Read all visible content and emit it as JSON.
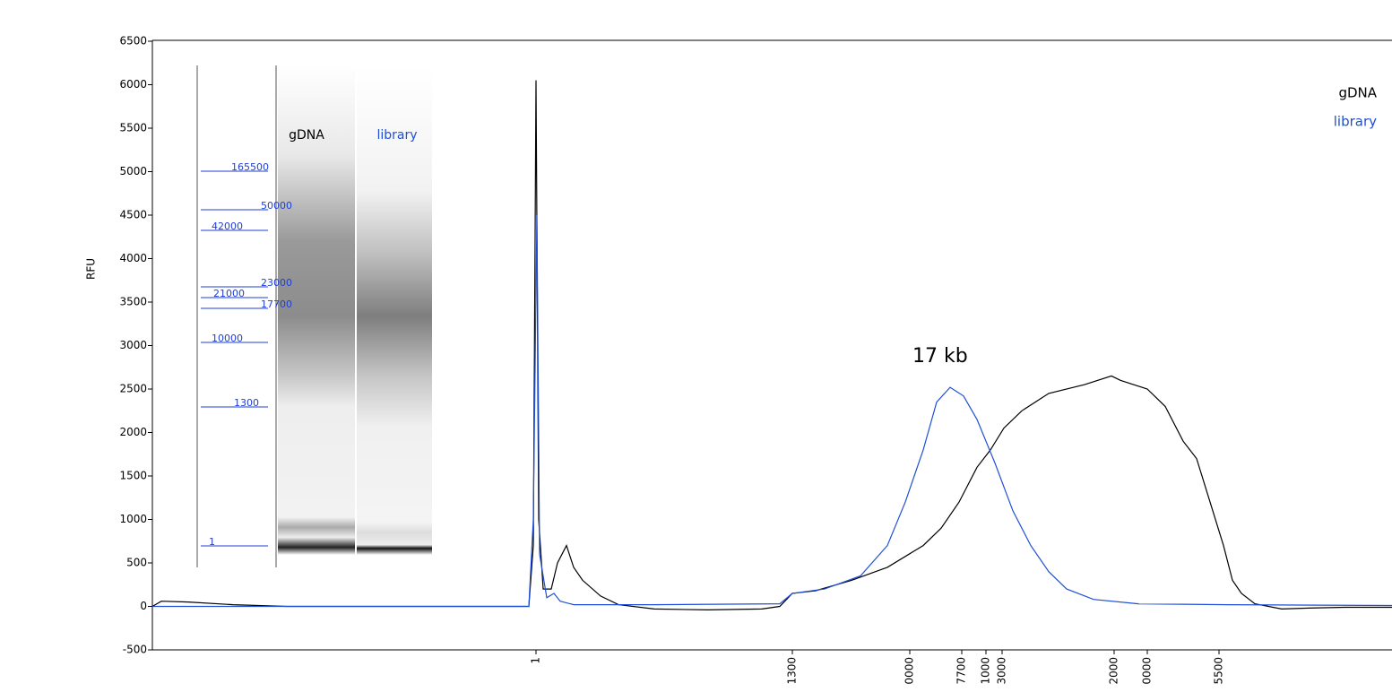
{
  "chart_data": {
    "type": "line",
    "y_label": "RFU",
    "annotation": "17 kb",
    "xlim": [
      0,
      1383
    ],
    "ylim": [
      -500,
      6500
    ],
    "yticks": [
      -500,
      0,
      500,
      1000,
      1500,
      2000,
      2500,
      3000,
      3500,
      4000,
      4500,
      5000,
      5500,
      6000,
      6500
    ],
    "xticks": [
      {
        "value": 428,
        "label": "1"
      },
      {
        "value": 714,
        "label": "1300"
      },
      {
        "value": 845,
        "label": "0000"
      },
      {
        "value": 903,
        "label": "7700"
      },
      {
        "value": 930,
        "label": "1000"
      },
      {
        "value": 948,
        "label": "3000"
      },
      {
        "value": 1073,
        "label": "2000"
      },
      {
        "value": 1110,
        "label": "0000"
      },
      {
        "value": 1190,
        "label": "5500"
      }
    ],
    "series": [
      {
        "name": "gDNA",
        "color": "#000000",
        "x": [
          0,
          10,
          40,
          90,
          150,
          300,
          420,
          425,
          428,
          431,
          436,
          445,
          452,
          462,
          470,
          480,
          500,
          520,
          560,
          620,
          680,
          700,
          714,
          740,
          780,
          820,
          860,
          880,
          900,
          920,
          935,
          950,
          970,
          1000,
          1040,
          1070,
          1080,
          1110,
          1130,
          1150,
          1165,
          1180,
          1195,
          1205,
          1215,
          1230,
          1260,
          1290,
          1330,
          1383
        ],
        "values": [
          0,
          60,
          50,
          20,
          0,
          0,
          0,
          700,
          6050,
          1000,
          200,
          200,
          500,
          700,
          450,
          300,
          120,
          20,
          -30,
          -40,
          -30,
          0,
          150,
          180,
          300,
          450,
          700,
          900,
          1200,
          1600,
          1800,
          2050,
          2250,
          2450,
          2550,
          2650,
          2600,
          2500,
          2300,
          1900,
          1700,
          1200,
          700,
          300,
          150,
          30,
          -30,
          -20,
          -10,
          -10
        ]
      },
      {
        "name": "library",
        "color": "#1f4fd6",
        "x": [
          0,
          150,
          420,
          425,
          429,
          432,
          440,
          448,
          455,
          470,
          560,
          700,
          714,
          750,
          790,
          820,
          840,
          860,
          875,
          890,
          905,
          920,
          940,
          960,
          980,
          1000,
          1020,
          1050,
          1100,
          1200,
          1383
        ],
        "values": [
          0,
          0,
          0,
          1000,
          4500,
          600,
          100,
          150,
          60,
          20,
          20,
          30,
          150,
          200,
          350,
          700,
          1200,
          1800,
          2350,
          2520,
          2420,
          2150,
          1650,
          1100,
          700,
          400,
          200,
          80,
          30,
          20,
          10
        ]
      }
    ],
    "gel": {
      "lanes": [
        "gDNA",
        "library"
      ],
      "ladder": [
        "165500",
        "50000",
        "42000",
        "23000",
        "21000",
        "17700",
        "10000",
        "1300",
        "1"
      ]
    }
  }
}
